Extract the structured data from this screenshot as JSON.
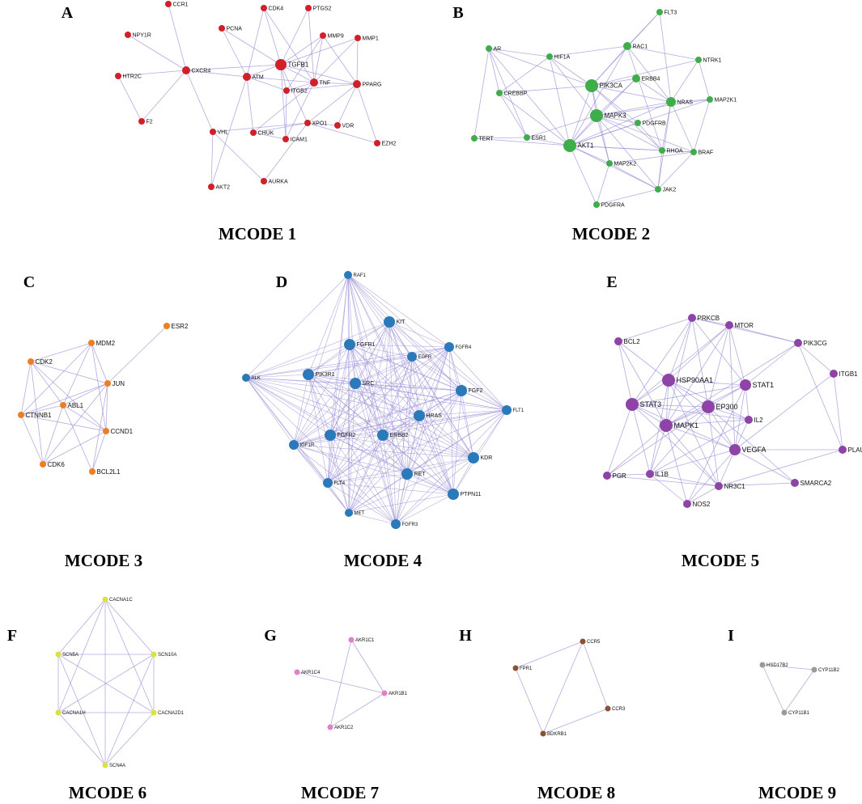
{
  "panels": [
    {
      "letter": "A",
      "title": "MCODE 1",
      "color": "#d0202a",
      "nodes": [
        {
          "id": "CCR1"
        },
        {
          "id": "NPY1R"
        },
        {
          "id": "HTR2C"
        },
        {
          "id": "F2"
        },
        {
          "id": "CXCR4"
        },
        {
          "id": "PCNA"
        },
        {
          "id": "CDK4"
        },
        {
          "id": "PTGS2"
        },
        {
          "id": "MMP9"
        },
        {
          "id": "MMP1"
        },
        {
          "id": "TGFB1"
        },
        {
          "id": "ATM"
        },
        {
          "id": "TNF"
        },
        {
          "id": "PPARG"
        },
        {
          "id": "ITGB2"
        },
        {
          "id": "VHL"
        },
        {
          "id": "CHUK"
        },
        {
          "id": "XPO1"
        },
        {
          "id": "VDR"
        },
        {
          "id": "ICAM1"
        },
        {
          "id": "EZH2"
        },
        {
          "id": "AKT2"
        },
        {
          "id": "AURKA"
        }
      ],
      "edges": [
        [
          "CCR1",
          "CXCR4"
        ],
        [
          "NPY1R",
          "CXCR4"
        ],
        [
          "HTR2C",
          "CXCR4"
        ],
        [
          "HTR2C",
          "F2"
        ],
        [
          "F2",
          "CXCR4"
        ],
        [
          "CXCR4",
          "ATM"
        ],
        [
          "CXCR4",
          "TGFB1"
        ],
        [
          "CXCR4",
          "VHL"
        ],
        [
          "PCNA",
          "ATM"
        ],
        [
          "PCNA",
          "TGFB1"
        ],
        [
          "CDK4",
          "ATM"
        ],
        [
          "CDK4",
          "TGFB1"
        ],
        [
          "CDK4",
          "TNF"
        ],
        [
          "PTGS2",
          "TGFB1"
        ],
        [
          "PTGS2",
          "TNF"
        ],
        [
          "MMP9",
          "TGFB1"
        ],
        [
          "MMP9",
          "TNF"
        ],
        [
          "MMP9",
          "ITGB2"
        ],
        [
          "MMP9",
          "PPARG"
        ],
        [
          "MMP1",
          "TGFB1"
        ],
        [
          "MMP1",
          "TNF"
        ],
        [
          "MMP1",
          "PPARG"
        ],
        [
          "TGFB1",
          "ATM"
        ],
        [
          "TGFB1",
          "TNF"
        ],
        [
          "TGFB1",
          "PPARG"
        ],
        [
          "TGFB1",
          "ITGB2"
        ],
        [
          "TGFB1",
          "ICAM1"
        ],
        [
          "TGFB1",
          "XPO1"
        ],
        [
          "ATM",
          "TNF"
        ],
        [
          "ATM",
          "CHUK"
        ],
        [
          "ATM",
          "AKT2"
        ],
        [
          "ATM",
          "ITGB2"
        ],
        [
          "TNF",
          "PPARG"
        ],
        [
          "TNF",
          "ICAM1"
        ],
        [
          "TNF",
          "ITGB2"
        ],
        [
          "TNF",
          "CHUK"
        ],
        [
          "PPARG",
          "VDR"
        ],
        [
          "PPARG",
          "EZH2"
        ],
        [
          "PPARG",
          "XPO1"
        ],
        [
          "PPARG",
          "ITGB2"
        ],
        [
          "ITGB2",
          "ICAM1"
        ],
        [
          "VHL",
          "AURKA"
        ],
        [
          "VHL",
          "AKT2"
        ],
        [
          "VHL",
          "XPO1"
        ],
        [
          "CHUK",
          "XPO1"
        ],
        [
          "CHUK",
          "ICAM1"
        ],
        [
          "XPO1",
          "EZH2"
        ],
        [
          "XPO1",
          "AURKA"
        ],
        [
          "VDR",
          "XPO1"
        ]
      ]
    },
    {
      "letter": "B",
      "title": "MCODE 2",
      "color": "#3fae4a",
      "nodes": [
        {
          "id": "FLT3"
        },
        {
          "id": "AR"
        },
        {
          "id": "HIF1A"
        },
        {
          "id": "RAC1"
        },
        {
          "id": "NTRK1"
        },
        {
          "id": "PIK3CA"
        },
        {
          "id": "ERBB4"
        },
        {
          "id": "CREBBP"
        },
        {
          "id": "NRAS"
        },
        {
          "id": "MAP2K1"
        },
        {
          "id": "MAPK3"
        },
        {
          "id": "PDGFRB"
        },
        {
          "id": "TERT"
        },
        {
          "id": "ESR1"
        },
        {
          "id": "AKT1"
        },
        {
          "id": "RHOA"
        },
        {
          "id": "BRAF"
        },
        {
          "id": "MAP2K2"
        },
        {
          "id": "JAK2"
        },
        {
          "id": "PDGFRA"
        }
      ],
      "edges": [
        [
          "FLT3",
          "RAC1"
        ],
        [
          "FLT3",
          "PIK3CA"
        ],
        [
          "FLT3",
          "NRAS"
        ],
        [
          "AR",
          "HIF1A"
        ],
        [
          "AR",
          "CREBBP"
        ],
        [
          "AR",
          "ESR1"
        ],
        [
          "AR",
          "TERT"
        ],
        [
          "AR",
          "AKT1"
        ],
        [
          "AR",
          "PIK3CA"
        ],
        [
          "HIF1A",
          "PIK3CA"
        ],
        [
          "HIF1A",
          "AKT1"
        ],
        [
          "HIF1A",
          "MAPK3"
        ],
        [
          "HIF1A",
          "CREBBP"
        ],
        [
          "HIF1A",
          "RAC1"
        ],
        [
          "RAC1",
          "PIK3CA"
        ],
        [
          "RAC1",
          "NTRK1"
        ],
        [
          "RAC1",
          "NRAS"
        ],
        [
          "RAC1",
          "AKT1"
        ],
        [
          "RAC1",
          "RHOA"
        ],
        [
          "NTRK1",
          "PIK3CA"
        ],
        [
          "NTRK1",
          "NRAS"
        ],
        [
          "NTRK1",
          "MAP2K1"
        ],
        [
          "PIK3CA",
          "ERBB4"
        ],
        [
          "PIK3CA",
          "NRAS"
        ],
        [
          "PIK3CA",
          "MAPK3"
        ],
        [
          "PIK3CA",
          "AKT1"
        ],
        [
          "PIK3CA",
          "PDGFRB"
        ],
        [
          "PIK3CA",
          "RHOA"
        ],
        [
          "PIK3CA",
          "MAP2K2"
        ],
        [
          "PIK3CA",
          "CREBBP"
        ],
        [
          "ERBB4",
          "MAPK3"
        ],
        [
          "ERBB4",
          "AKT1"
        ],
        [
          "ERBB4",
          "NRAS"
        ],
        [
          "CREBBP",
          "ESR1"
        ],
        [
          "CREBBP",
          "AKT1"
        ],
        [
          "NRAS",
          "MAP2K1"
        ],
        [
          "NRAS",
          "MAPK3"
        ],
        [
          "NRAS",
          "BRAF"
        ],
        [
          "NRAS",
          "AKT1"
        ],
        [
          "NRAS",
          "RHOA"
        ],
        [
          "NRAS",
          "JAK2"
        ],
        [
          "MAP2K1",
          "MAPK3"
        ],
        [
          "MAP2K1",
          "BRAF"
        ],
        [
          "MAP2K1",
          "AKT1"
        ],
        [
          "MAPK3",
          "PDGFRB"
        ],
        [
          "MAPK3",
          "AKT1"
        ],
        [
          "MAPK3",
          "RHOA"
        ],
        [
          "MAPK3",
          "MAP2K2"
        ],
        [
          "MAPK3",
          "ESR1"
        ],
        [
          "MAPK3",
          "BRAF"
        ],
        [
          "MAPK3",
          "JAK2"
        ],
        [
          "PDGFRB",
          "AKT1"
        ],
        [
          "PDGFRB",
          "RHOA"
        ],
        [
          "TERT",
          "ESR1"
        ],
        [
          "TERT",
          "AKT1"
        ],
        [
          "ESR1",
          "AKT1"
        ],
        [
          "AKT1",
          "RHOA"
        ],
        [
          "AKT1",
          "MAP2K2"
        ],
        [
          "AKT1",
          "JAK2"
        ],
        [
          "AKT1",
          "PDGFRA"
        ],
        [
          "AKT1",
          "BRAF"
        ],
        [
          "RHOA",
          "BRAF"
        ],
        [
          "RHOA",
          "JAK2"
        ],
        [
          "MAP2K2",
          "JAK2"
        ],
        [
          "MAP2K2",
          "BRAF"
        ],
        [
          "MAP2K2",
          "PDGFRA"
        ],
        [
          "JAK2",
          "PDGFRA"
        ],
        [
          "BRAF",
          "JAK2"
        ]
      ]
    },
    {
      "letter": "C",
      "title": "MCODE 3",
      "color": "#ec7f23",
      "nodes": [
        {
          "id": "ESR2"
        },
        {
          "id": "MDM2"
        },
        {
          "id": "CDK2"
        },
        {
          "id": "JUN"
        },
        {
          "id": "ABL1"
        },
        {
          "id": "CTNNB1"
        },
        {
          "id": "CCND1"
        },
        {
          "id": "CDK6"
        },
        {
          "id": "BCL2L1"
        }
      ],
      "edges": [
        [
          "ESR2",
          "JUN"
        ],
        [
          "MDM2",
          "CDK2"
        ],
        [
          "MDM2",
          "JUN"
        ],
        [
          "MDM2",
          "ABL1"
        ],
        [
          "MDM2",
          "CCND1"
        ],
        [
          "MDM2",
          "CTNNB1"
        ],
        [
          "CDK2",
          "ABL1"
        ],
        [
          "CDK2",
          "CTNNB1"
        ],
        [
          "CDK2",
          "CCND1"
        ],
        [
          "CDK2",
          "JUN"
        ],
        [
          "JUN",
          "ABL1"
        ],
        [
          "JUN",
          "CCND1"
        ],
        [
          "JUN",
          "CTNNB1"
        ],
        [
          "JUN",
          "BCL2L1"
        ],
        [
          "ABL1",
          "CTNNB1"
        ],
        [
          "ABL1",
          "CCND1"
        ],
        [
          "ABL1",
          "CDK6"
        ],
        [
          "ABL1",
          "BCL2L1"
        ],
        [
          "CTNNB1",
          "CCND1"
        ],
        [
          "CTNNB1",
          "CDK6"
        ],
        [
          "CCND1",
          "CDK6"
        ],
        [
          "CCND1",
          "BCL2L1"
        ],
        [
          "CDK6",
          "JUN"
        ],
        [
          "CDK6",
          "CDK2"
        ]
      ]
    },
    {
      "letter": "D",
      "title": "MCODE 4",
      "color": "#2a7ab9",
      "nodes": [
        {
          "id": "RAF1"
        },
        {
          "id": "KIT"
        },
        {
          "id": "FGFR1"
        },
        {
          "id": "FGFR4"
        },
        {
          "id": "EGFR"
        },
        {
          "id": "ALK"
        },
        {
          "id": "PIK3R1"
        },
        {
          "id": "SRC"
        },
        {
          "id": "FGF2"
        },
        {
          "id": "FLT1"
        },
        {
          "id": "HRAS"
        },
        {
          "id": "IGF1R"
        },
        {
          "id": "FGFR2"
        },
        {
          "id": "ERBB2"
        },
        {
          "id": "KDR"
        },
        {
          "id": "FLT4"
        },
        {
          "id": "RET"
        },
        {
          "id": "PTPN11"
        },
        {
          "id": "MET"
        },
        {
          "id": "FGFR3"
        }
      ],
      "edges": "complete"
    },
    {
      "letter": "E",
      "title": "MCODE 5",
      "color": "#8e44a6",
      "nodes": [
        {
          "id": "PRKCB"
        },
        {
          "id": "MTOR"
        },
        {
          "id": "BCL2"
        },
        {
          "id": "PIK3CG"
        },
        {
          "id": "ITGB1"
        },
        {
          "id": "HSP90AA1"
        },
        {
          "id": "STAT1"
        },
        {
          "id": "STAT3"
        },
        {
          "id": "EP300"
        },
        {
          "id": "IL2"
        },
        {
          "id": "MAPK1"
        },
        {
          "id": "VEGFA"
        },
        {
          "id": "PLAU"
        },
        {
          "id": "PGR"
        },
        {
          "id": "IL1B"
        },
        {
          "id": "NR3C1"
        },
        {
          "id": "SMARCA2"
        },
        {
          "id": "NOS2"
        }
      ],
      "edges": [
        [
          "PRKCB",
          "MTOR"
        ],
        [
          "PRKCB",
          "HSP90AA1"
        ],
        [
          "PRKCB",
          "STAT1"
        ],
        [
          "PRKCB",
          "STAT3"
        ],
        [
          "PRKCB",
          "EP300"
        ],
        [
          "PRKCB",
          "MAPK1"
        ],
        [
          "PRKCB",
          "BCL2"
        ],
        [
          "PRKCB",
          "PIK3CG"
        ],
        [
          "MTOR",
          "HSP90AA1"
        ],
        [
          "MTOR",
          "STAT1"
        ],
        [
          "MTOR",
          "STAT3"
        ],
        [
          "MTOR",
          "EP300"
        ],
        [
          "MTOR",
          "MAPK1"
        ],
        [
          "MTOR",
          "PIK3CG"
        ],
        [
          "MTOR",
          "VEGFA"
        ],
        [
          "BCL2",
          "HSP90AA1"
        ],
        [
          "BCL2",
          "STAT3"
        ],
        [
          "BCL2",
          "MAPK1"
        ],
        [
          "PIK3CG",
          "STAT1"
        ],
        [
          "PIK3CG",
          "ITGB1"
        ],
        [
          "PIK3CG",
          "MAPK1"
        ],
        [
          "PIK3CG",
          "PLAU"
        ],
        [
          "ITGB1",
          "VEGFA"
        ],
        [
          "ITGB1",
          "PLAU"
        ],
        [
          "HSP90AA1",
          "STAT1"
        ],
        [
          "HSP90AA1",
          "STAT3"
        ],
        [
          "HSP90AA1",
          "EP300"
        ],
        [
          "HSP90AA1",
          "MAPK1"
        ],
        [
          "HSP90AA1",
          "IL2"
        ],
        [
          "HSP90AA1",
          "VEGFA"
        ],
        [
          "HSP90AA1",
          "NR3C1"
        ],
        [
          "HSP90AA1",
          "IL1B"
        ],
        [
          "STAT1",
          "STAT3"
        ],
        [
          "STAT1",
          "EP300"
        ],
        [
          "STAT1",
          "IL2"
        ],
        [
          "STAT1",
          "MAPK1"
        ],
        [
          "STAT1",
          "VEGFA"
        ],
        [
          "STAT1",
          "NOS2"
        ],
        [
          "STAT3",
          "EP300"
        ],
        [
          "STAT3",
          "MAPK1"
        ],
        [
          "STAT3",
          "VEGFA"
        ],
        [
          "STAT3",
          "IL1B"
        ],
        [
          "STAT3",
          "PGR"
        ],
        [
          "STAT3",
          "NR3C1"
        ],
        [
          "STAT3",
          "IL2"
        ],
        [
          "EP300",
          "MAPK1"
        ],
        [
          "EP300",
          "IL2"
        ],
        [
          "EP300",
          "VEGFA"
        ],
        [
          "EP300",
          "NR3C1"
        ],
        [
          "EP300",
          "IL1B"
        ],
        [
          "EP300",
          "SMARCA2"
        ],
        [
          "EP300",
          "PGR"
        ],
        [
          "IL2",
          "VEGFA"
        ],
        [
          "IL2",
          "MAPK1"
        ],
        [
          "IL2",
          "IL1B"
        ],
        [
          "MAPK1",
          "VEGFA"
        ],
        [
          "MAPK1",
          "IL1B"
        ],
        [
          "MAPK1",
          "NR3C1"
        ],
        [
          "MAPK1",
          "PGR"
        ],
        [
          "MAPK1",
          "NOS2"
        ],
        [
          "VEGFA",
          "PLAU"
        ],
        [
          "VEGFA",
          "NR3C1"
        ],
        [
          "VEGFA",
          "IL1B"
        ],
        [
          "VEGFA",
          "NOS2"
        ],
        [
          "VEGFA",
          "SMARCA2"
        ],
        [
          "PGR",
          "IL1B"
        ],
        [
          "PGR",
          "NR3C1"
        ],
        [
          "IL1B",
          "NR3C1"
        ],
        [
          "IL1B",
          "NOS2"
        ],
        [
          "NR3C1",
          "SMARCA2"
        ],
        [
          "NR3C1",
          "NOS2"
        ],
        [
          "NR3C1",
          "PLAU"
        ]
      ]
    },
    {
      "letter": "F",
      "title": "MCODE 6",
      "color": "#d9e33c",
      "nodes": [
        {
          "id": "CACNA1C"
        },
        {
          "id": "SCN5A"
        },
        {
          "id": "SCN10A"
        },
        {
          "id": "CACNA1H"
        },
        {
          "id": "CACNA2D1"
        },
        {
          "id": "SCN4A"
        }
      ],
      "edges": "complete"
    },
    {
      "letter": "G",
      "title": "MCODE 7",
      "color": "#e37fc9",
      "nodes": [
        {
          "id": "AKR1C1"
        },
        {
          "id": "AKR1C4"
        },
        {
          "id": "AKR1B1"
        },
        {
          "id": "AKR1C2"
        }
      ],
      "edges": [
        [
          "AKR1C1",
          "AKR1B1"
        ],
        [
          "AKR1C1",
          "AKR1C2"
        ],
        [
          "AKR1C4",
          "AKR1B1"
        ],
        [
          "AKR1B1",
          "AKR1C2"
        ]
      ]
    },
    {
      "letter": "H",
      "title": "MCODE 8",
      "color": "#8a5230",
      "nodes": [
        {
          "id": "CCR5"
        },
        {
          "id": "FPR1"
        },
        {
          "id": "CCR3"
        },
        {
          "id": "BDKRB1"
        }
      ],
      "edges": [
        [
          "CCR5",
          "FPR1"
        ],
        [
          "CCR5",
          "CCR3"
        ],
        [
          "CCR5",
          "BDKRB1"
        ],
        [
          "FPR1",
          "BDKRB1"
        ],
        [
          "CCR3",
          "BDKRB1"
        ]
      ]
    },
    {
      "letter": "I",
      "title": "MCODE 9",
      "color": "#9a9a9a",
      "nodes": [
        {
          "id": "HSD17B2"
        },
        {
          "id": "CYP11B2"
        },
        {
          "id": "CYP11B1"
        }
      ],
      "edges": "complete"
    }
  ]
}
